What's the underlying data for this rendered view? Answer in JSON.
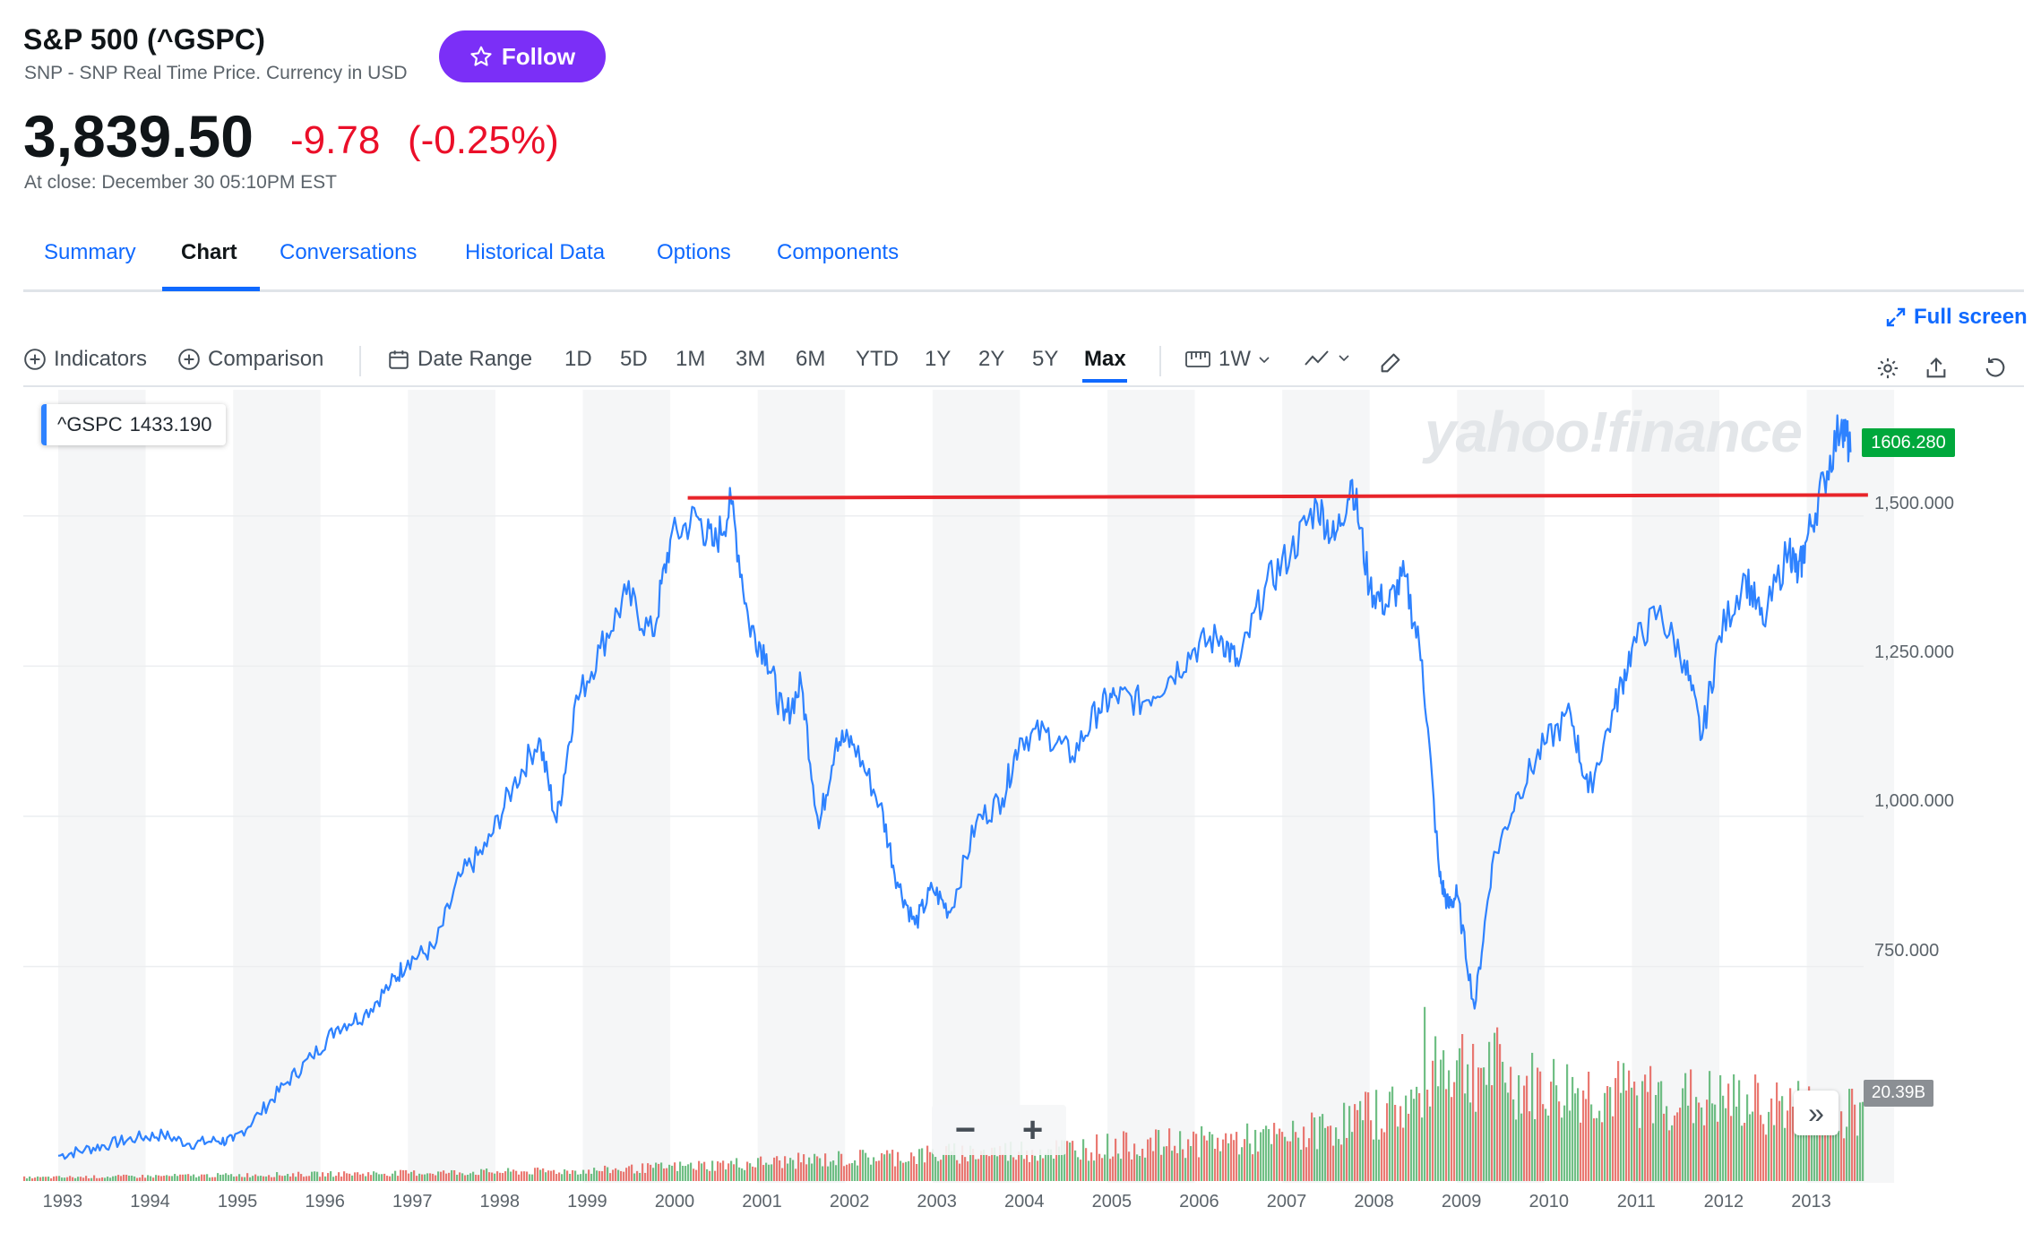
{
  "header": {
    "title": "S&P 500 (^GSPC)",
    "subtitle": "SNP - SNP Real Time Price. Currency in USD",
    "follow_label": "Follow",
    "price": "3,839.50",
    "change": "-9.78",
    "change_pct": "(-0.25%)",
    "closing": "At close: December 30 05:10PM EST",
    "negative_color": "#eb0f29"
  },
  "tabs": [
    {
      "label": "Summary",
      "active": false
    },
    {
      "label": "Chart",
      "active": true
    },
    {
      "label": "Conversations",
      "active": false
    },
    {
      "label": "Historical Data",
      "active": false
    },
    {
      "label": "Options",
      "active": false
    },
    {
      "label": "Components",
      "active": false
    }
  ],
  "toolbar": {
    "fullscreen_label": "Full screen",
    "indicators_label": "Indicators",
    "comparison_label": "Comparison",
    "date_range_label": "Date Range",
    "ranges": [
      "1D",
      "5D",
      "1M",
      "3M",
      "6M",
      "YTD",
      "1Y",
      "2Y",
      "5Y",
      "Max"
    ],
    "active_range": "Max",
    "interval_label": "1W",
    "icons": [
      "plus-circle-icon",
      "calendar-icon",
      "candle-icon",
      "line-chart-icon",
      "draw-icon",
      "gear-icon",
      "share-icon",
      "reset-icon"
    ]
  },
  "chart": {
    "legend_symbol": "^GSPC",
    "legend_value": "1433.190",
    "watermark": "yahoo!finance",
    "last_price": "1606.280",
    "volume_label": "20.39B",
    "zoom_out": "−",
    "zoom_in": "+",
    "expand_label": "»"
  },
  "chart_data": {
    "type": "line",
    "series": [
      {
        "name": "^GSPC",
        "color": "#2e82ff",
        "points": [
          [
            "1993.0",
            435
          ],
          [
            "1993.3",
            445
          ],
          [
            "1993.6",
            455
          ],
          [
            "1993.9",
            465
          ],
          [
            "1994.2",
            470
          ],
          [
            "1994.5",
            455
          ],
          [
            "1994.8",
            460
          ],
          [
            "1995.0",
            460
          ],
          [
            "1995.3",
            505
          ],
          [
            "1995.6",
            555
          ],
          [
            "1995.9",
            600
          ],
          [
            "1996.2",
            650
          ],
          [
            "1996.5",
            670
          ],
          [
            "1996.8",
            720
          ],
          [
            "1997.0",
            760
          ],
          [
            "1997.3",
            780
          ],
          [
            "1997.6",
            900
          ],
          [
            "1997.9",
            950
          ],
          [
            "1998.2",
            1050
          ],
          [
            "1998.5",
            1130
          ],
          [
            "1998.7",
            990
          ],
          [
            "1998.9",
            1180
          ],
          [
            "1999.2",
            1280
          ],
          [
            "1999.5",
            1370
          ],
          [
            "1999.8",
            1300
          ],
          [
            "2000.0",
            1460
          ],
          [
            "2000.3",
            1500
          ],
          [
            "2000.5",
            1450
          ],
          [
            "2000.7",
            1520
          ],
          [
            "2000.9",
            1320
          ],
          [
            "2001.1",
            1270
          ],
          [
            "2001.3",
            1160
          ],
          [
            "2001.5",
            1220
          ],
          [
            "2001.7",
            980
          ],
          [
            "2001.9",
            1130
          ],
          [
            "2002.1",
            1120
          ],
          [
            "2002.4",
            1020
          ],
          [
            "2002.6",
            890
          ],
          [
            "2002.8",
            820
          ],
          [
            "2003.0",
            880
          ],
          [
            "2003.2",
            840
          ],
          [
            "2003.5",
            990
          ],
          [
            "2003.8",
            1030
          ],
          [
            "2004.0",
            1130
          ],
          [
            "2004.3",
            1140
          ],
          [
            "2004.6",
            1100
          ],
          [
            "2004.9",
            1180
          ],
          [
            "2005.1",
            1200
          ],
          [
            "2005.4",
            1190
          ],
          [
            "2005.7",
            1230
          ],
          [
            "2006.0",
            1280
          ],
          [
            "2006.3",
            1300
          ],
          [
            "2006.5",
            1250
          ],
          [
            "2006.8",
            1380
          ],
          [
            "2007.1",
            1440
          ],
          [
            "2007.4",
            1520
          ],
          [
            "2007.6",
            1460
          ],
          [
            "2007.8",
            1560
          ],
          [
            "2008.0",
            1380
          ],
          [
            "2008.2",
            1350
          ],
          [
            "2008.4",
            1400
          ],
          [
            "2008.6",
            1260
          ],
          [
            "2008.8",
            900
          ],
          [
            "2008.9",
            850
          ],
          [
            "2009.0",
            870
          ],
          [
            "2009.2",
            680
          ],
          [
            "2009.4",
            920
          ],
          [
            "2009.7",
            1040
          ],
          [
            "2010.0",
            1120
          ],
          [
            "2010.3",
            1170
          ],
          [
            "2010.5",
            1040
          ],
          [
            "2010.8",
            1180
          ],
          [
            "2011.0",
            1280
          ],
          [
            "2011.3",
            1340
          ],
          [
            "2011.6",
            1260
          ],
          [
            "2011.8",
            1130
          ],
          [
            "2012.0",
            1300
          ],
          [
            "2012.3",
            1400
          ],
          [
            "2012.5",
            1320
          ],
          [
            "2012.8",
            1450
          ],
          [
            "2012.9",
            1400
          ],
          [
            "2013.0",
            1460
          ],
          [
            "2013.2",
            1560
          ],
          [
            "2013.4",
            1660
          ],
          [
            "2013.5",
            1606
          ]
        ]
      }
    ],
    "x_ticks": [
      "1993",
      "1994",
      "1995",
      "1996",
      "1997",
      "1998",
      "1999",
      "2000",
      "2001",
      "2002",
      "2003",
      "2004",
      "2005",
      "2006",
      "2007",
      "2008",
      "2009",
      "2010",
      "2011",
      "2012",
      "2013"
    ],
    "y_ticks": [
      "1,500.000",
      "1,250.000",
      "1,000.000",
      "750.000"
    ],
    "ylim": [
      390,
      1710
    ],
    "grid": "vertical bands",
    "annotation": {
      "type": "horizontal line",
      "value": 1530,
      "from": "2000.2",
      "to": "2013.7",
      "color": "#e8242a"
    },
    "volume": {
      "color_up": "#4caf66",
      "color_down": "#e5574f",
      "max_label": "20.39B"
    }
  }
}
